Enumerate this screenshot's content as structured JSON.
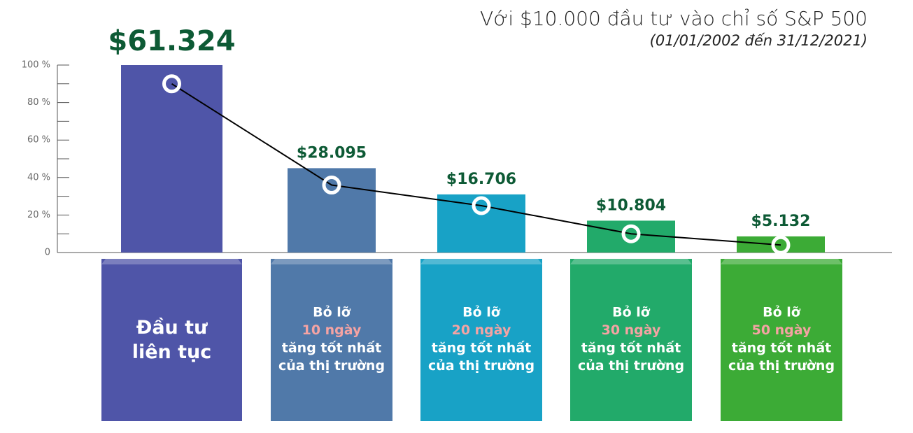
{
  "chart_data": {
    "type": "bar",
    "title": "Với $10.000 đầu tư vào chỉ số S&P 500",
    "subtitle": "(01/01/2002 đến 31/12/2021)",
    "categories": [
      [
        "Đầu tư",
        "liên tục"
      ],
      [
        "Bỏ lỡ",
        "10 ngày",
        "tăng tốt nhất",
        "của thị trường"
      ],
      [
        "Bỏ lỡ",
        "20 ngày",
        "tăng tốt nhất",
        "của thị trường"
      ],
      [
        "Bỏ lỡ",
        "30 ngày",
        "tăng tốt nhất",
        "của thị trường"
      ],
      [
        "Bỏ lỡ",
        "50 ngày",
        "tăng tốt nhất",
        "của thị trường"
      ]
    ],
    "annotations": [
      "$61.324",
      "$28.095",
      "$16.706",
      "$10.804",
      "$5.132"
    ],
    "series": [
      {
        "type": "bar",
        "colors": [
          "#4f55a8",
          "#5079a9",
          "#18a2c6",
          "#22aa6a",
          "#3cab36"
        ],
        "values": [
          100,
          45,
          31,
          17,
          8.6
        ]
      },
      {
        "type": "line",
        "color": "#000000",
        "values": [
          90,
          36,
          25,
          10,
          4
        ]
      }
    ],
    "ylim": [
      0,
      100
    ],
    "yticks": [
      0,
      {
        "value": 20,
        "label": "20 %"
      },
      {
        "value": 40,
        "label": "40 %"
      },
      {
        "value": 60,
        "label": "60 %"
      },
      {
        "value": 80,
        "label": "80 %"
      },
      {
        "value": 100,
        "label": "100 %"
      }
    ],
    "minor_yticks": [
      10,
      30,
      50,
      70,
      90
    ]
  }
}
